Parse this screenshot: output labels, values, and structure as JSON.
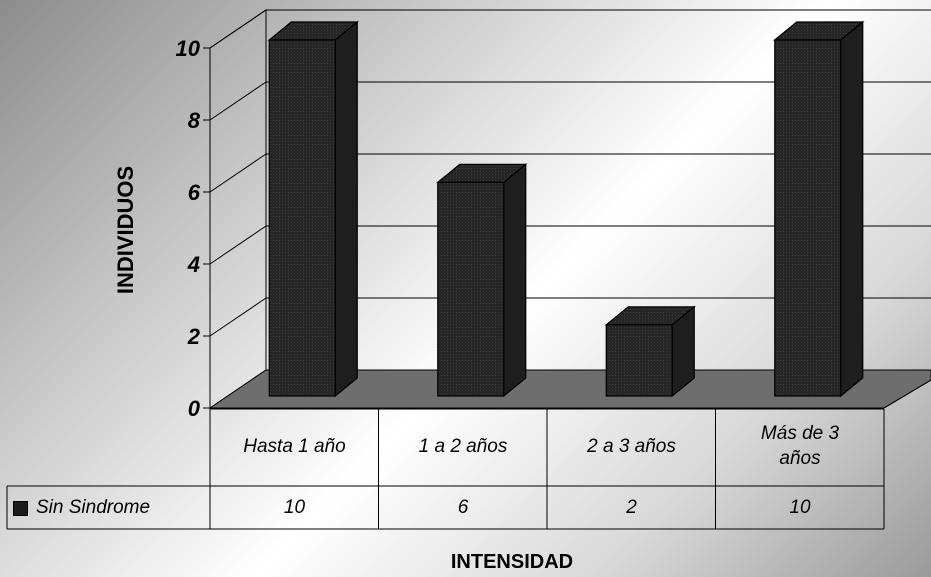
{
  "chart_data": {
    "type": "bar",
    "categories": [
      "Hasta 1 año",
      "1 a 2 años",
      "2 a 3 años",
      "Más de 3 años"
    ],
    "series": [
      {
        "name": "Sin Sindrome",
        "values": [
          10,
          6,
          2,
          10
        ],
        "color": "#1b1b1b"
      }
    ],
    "xlabel": "INTENSIDAD",
    "ylabel": "INDIVIDUOS",
    "ylim": [
      0,
      10
    ],
    "yticks": [
      "0",
      "2",
      "4",
      "6",
      "8",
      "10"
    ],
    "table_values": [
      "10",
      "6",
      "2",
      "10"
    ],
    "grid": true,
    "style": "3d",
    "floor_color": "#6e6e6e",
    "legend_position": "data-table"
  }
}
